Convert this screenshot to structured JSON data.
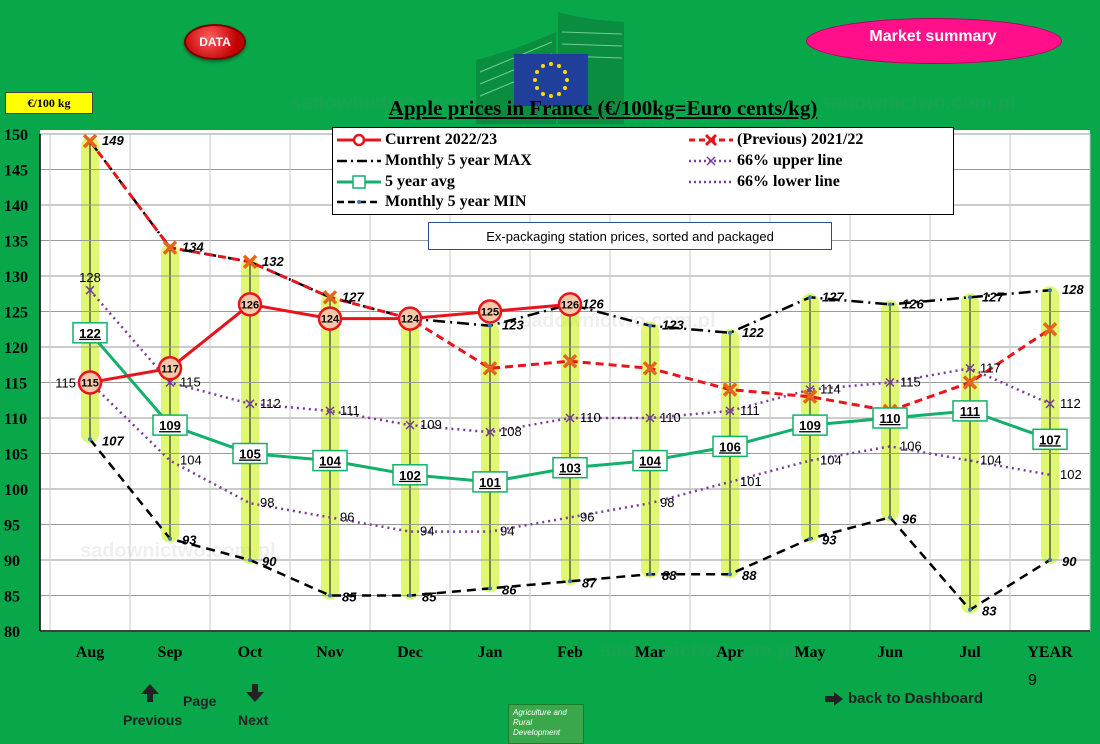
{
  "header": {
    "data_button": "DATA",
    "market_button": "Market summary",
    "unit_badge": "€/100 kg"
  },
  "chart_data": {
    "type": "line",
    "title": "Apple prices in France (€/100kg=Euro cents/kg)",
    "subtitle": "Ex-packaging station prices, sorted and packaged",
    "categories": [
      "Aug",
      "Sep",
      "Oct",
      "Nov",
      "Dec",
      "Jan",
      "Feb",
      "Mar",
      "Apr",
      "May",
      "Jun",
      "Jul",
      "YEAR"
    ],
    "ylim": [
      80,
      150
    ],
    "yticks": [
      80,
      85,
      90,
      95,
      100,
      105,
      110,
      115,
      120,
      125,
      130,
      135,
      140,
      145,
      150
    ],
    "grid": true,
    "legend_position": "top-center",
    "series": [
      {
        "name": "Current 2022/23",
        "color": "#e8141c",
        "style": "solid-circle",
        "values": [
          115,
          117,
          126,
          124,
          124,
          125,
          126,
          null,
          null,
          null,
          null,
          null,
          null
        ],
        "labels": [
          "115",
          "117",
          "126",
          "124",
          "124",
          "125",
          "126",
          "",
          "",
          "",
          "",
          "",
          ""
        ]
      },
      {
        "name": "(Previous) 2021/22",
        "color": "#e8141c",
        "style": "dashed-x",
        "values": [
          149,
          134,
          132,
          127,
          124,
          117,
          118,
          117,
          114,
          113,
          111,
          115,
          122.5
        ],
        "labels": [
          "",
          "",
          "",
          "",
          "",
          "",
          "",
          "",
          "",
          "",
          "",
          "",
          ""
        ]
      },
      {
        "name": "Monthly 5 year MAX",
        "color": "#000000",
        "style": "dashdot",
        "values": [
          149,
          134,
          132,
          127,
          124,
          123,
          126,
          123,
          122,
          127,
          126,
          127,
          128
        ],
        "labels": [
          "149",
          "134",
          "132",
          "127",
          "",
          "123",
          "126",
          "123",
          "122",
          "127",
          "126",
          "127",
          "128"
        ]
      },
      {
        "name": "66% upper line",
        "color": "#7a3c9c",
        "style": "dotted-x",
        "values": [
          128,
          115,
          112,
          111,
          109,
          108,
          110,
          110,
          111,
          114,
          115,
          117,
          112
        ],
        "labels": [
          "128",
          "115",
          "112",
          "111",
          "109",
          "108",
          "110",
          "110",
          "111",
          "114",
          "115",
          "117",
          "112"
        ]
      },
      {
        "name": "5 year avg",
        "color": "#12b06a",
        "style": "solid-square",
        "values": [
          122,
          109,
          105,
          104,
          102,
          101,
          103,
          104,
          106,
          109,
          110,
          111,
          107
        ],
        "labels": [
          "122",
          "109",
          "105",
          "104",
          "102",
          "101",
          "103",
          "104",
          "106",
          "109",
          "110",
          "111",
          "107"
        ]
      },
      {
        "name": "66% lower line",
        "color": "#7a3c9c",
        "style": "dotted",
        "values": [
          115,
          104,
          98,
          96,
          94,
          94,
          96,
          98,
          101,
          104,
          106,
          104,
          102
        ],
        "labels": [
          "115",
          "104",
          "98",
          "96",
          "94",
          "94",
          "96",
          "98",
          "101",
          "104",
          "106",
          "104",
          "102"
        ]
      },
      {
        "name": "Monthly 5 year MIN",
        "color": "#000000",
        "style": "dashed",
        "values": [
          107,
          93,
          90,
          85,
          85,
          86,
          87,
          88,
          88,
          93,
          96,
          83,
          90
        ],
        "labels": [
          "107",
          "93",
          "90",
          "85",
          "85",
          "86",
          "87",
          "88",
          "88",
          "93",
          "96",
          "83",
          "90"
        ]
      }
    ]
  },
  "footer": {
    "page_label": "Page",
    "previous_label": "Previous",
    "next_label": "Next",
    "page_number": "9",
    "dashboard_link": "back to Dashboard",
    "logo_text": "Agriculture and Rural Development"
  },
  "colors": {
    "background": "#08a84a",
    "highlight_band": "#c6f000",
    "market_bubble": "#ff0f8a"
  }
}
